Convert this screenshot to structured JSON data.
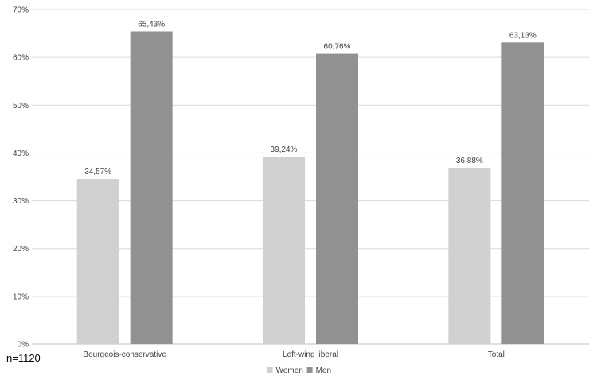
{
  "chart_data": {
    "type": "bar",
    "categories": [
      "Bourgeois-conservative",
      "Left-wing liberal",
      "Total"
    ],
    "series": [
      {
        "name": "Women",
        "values": [
          34.57,
          39.24,
          36.88
        ],
        "labels": [
          "34,57%",
          "39,24%",
          "36,88%"
        ],
        "color": "#d0d0d0"
      },
      {
        "name": "Men",
        "values": [
          65.43,
          60.76,
          63.13
        ],
        "labels": [
          "65,43%",
          "60,76%",
          "63,13%"
        ],
        "color": "#919191"
      }
    ],
    "ylim": [
      0,
      70
    ],
    "yticks": [
      0,
      10,
      20,
      30,
      40,
      50,
      60,
      70
    ],
    "ytick_labels": [
      "0%",
      "10%",
      "20%",
      "30%",
      "40%",
      "50%",
      "60%",
      "70%"
    ],
    "grid": true,
    "legend_position": "bottom",
    "title": "",
    "xlabel": "",
    "ylabel": ""
  },
  "note": "n=1120"
}
